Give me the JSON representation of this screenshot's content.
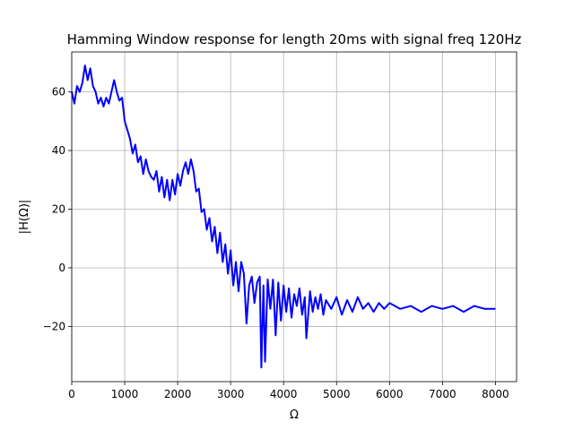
{
  "chart_data": {
    "type": "line",
    "title": "Hamming Window response for length 20ms with signal freq 120Hz",
    "x_label": "Ω",
    "y_label": "|H(Ω)|",
    "x": [
      0,
      50,
      100,
      150,
      200,
      250,
      300,
      350,
      400,
      450,
      500,
      550,
      600,
      650,
      700,
      750,
      800,
      850,
      900,
      950,
      1000,
      1050,
      1100,
      1150,
      1200,
      1250,
      1300,
      1350,
      1400,
      1450,
      1500,
      1550,
      1600,
      1650,
      1700,
      1750,
      1800,
      1850,
      1900,
      1950,
      2000,
      2050,
      2100,
      2150,
      2200,
      2250,
      2300,
      2350,
      2400,
      2450,
      2500,
      2550,
      2600,
      2650,
      2700,
      2750,
      2800,
      2850,
      2900,
      2950,
      3000,
      3050,
      3100,
      3150,
      3200,
      3250,
      3300,
      3350,
      3400,
      3450,
      3500,
      3550,
      3580,
      3620,
      3650,
      3700,
      3750,
      3800,
      3850,
      3900,
      3950,
      4000,
      4050,
      4100,
      4150,
      4200,
      4250,
      4300,
      4350,
      4400,
      4430,
      4500,
      4550,
      4600,
      4650,
      4700,
      4750,
      4800,
      4900,
      5000,
      5100,
      5200,
      5300,
      5400,
      5500,
      5600,
      5700,
      5800,
      5900,
      6000,
      6200,
      6400,
      6600,
      6800,
      7000,
      7200,
      7400,
      7600,
      7800,
      8000
    ],
    "series": [
      {
        "color": "#0000ff",
        "values": [
          60,
          56,
          62,
          60,
          63,
          69,
          64,
          68,
          62,
          60,
          56,
          58,
          55,
          58,
          56,
          60,
          64,
          60,
          57,
          58,
          50,
          47,
          44,
          39,
          42,
          36,
          38,
          32,
          37,
          33,
          31,
          30,
          33,
          26,
          31,
          24,
          30,
          23,
          30,
          25,
          32,
          28,
          33,
          36,
          32,
          37,
          33,
          26,
          27,
          19,
          20,
          13,
          17,
          9,
          14,
          5,
          12,
          2,
          8,
          -2,
          6,
          -6,
          2,
          -8,
          2,
          -2,
          -19,
          -6,
          -3,
          -12,
          -5,
          -3,
          -34,
          -6,
          -32,
          -4,
          -14,
          -4,
          -23,
          -5,
          -18,
          -6,
          -15,
          -7,
          -17,
          -9,
          -13,
          -7,
          -16,
          -10,
          -24,
          -8,
          -15,
          -10,
          -14,
          -9,
          -16,
          -11,
          -14,
          -10,
          -16,
          -11,
          -15,
          -10,
          -14,
          -12,
          -15,
          -12,
          -14,
          -12,
          -14,
          -13,
          -15,
          -13,
          -14,
          -13,
          -15,
          -13,
          -14,
          -14
        ]
      }
    ],
    "xlim": [
      0,
      8400
    ],
    "ylim": [
      -38.8,
      73.6
    ],
    "xticks": [
      0,
      1000,
      2000,
      3000,
      4000,
      5000,
      6000,
      7000,
      8000
    ],
    "yticks": [
      {
        "value": -20,
        "label": "−20"
      },
      0,
      20,
      40,
      60
    ],
    "grid": true
  }
}
